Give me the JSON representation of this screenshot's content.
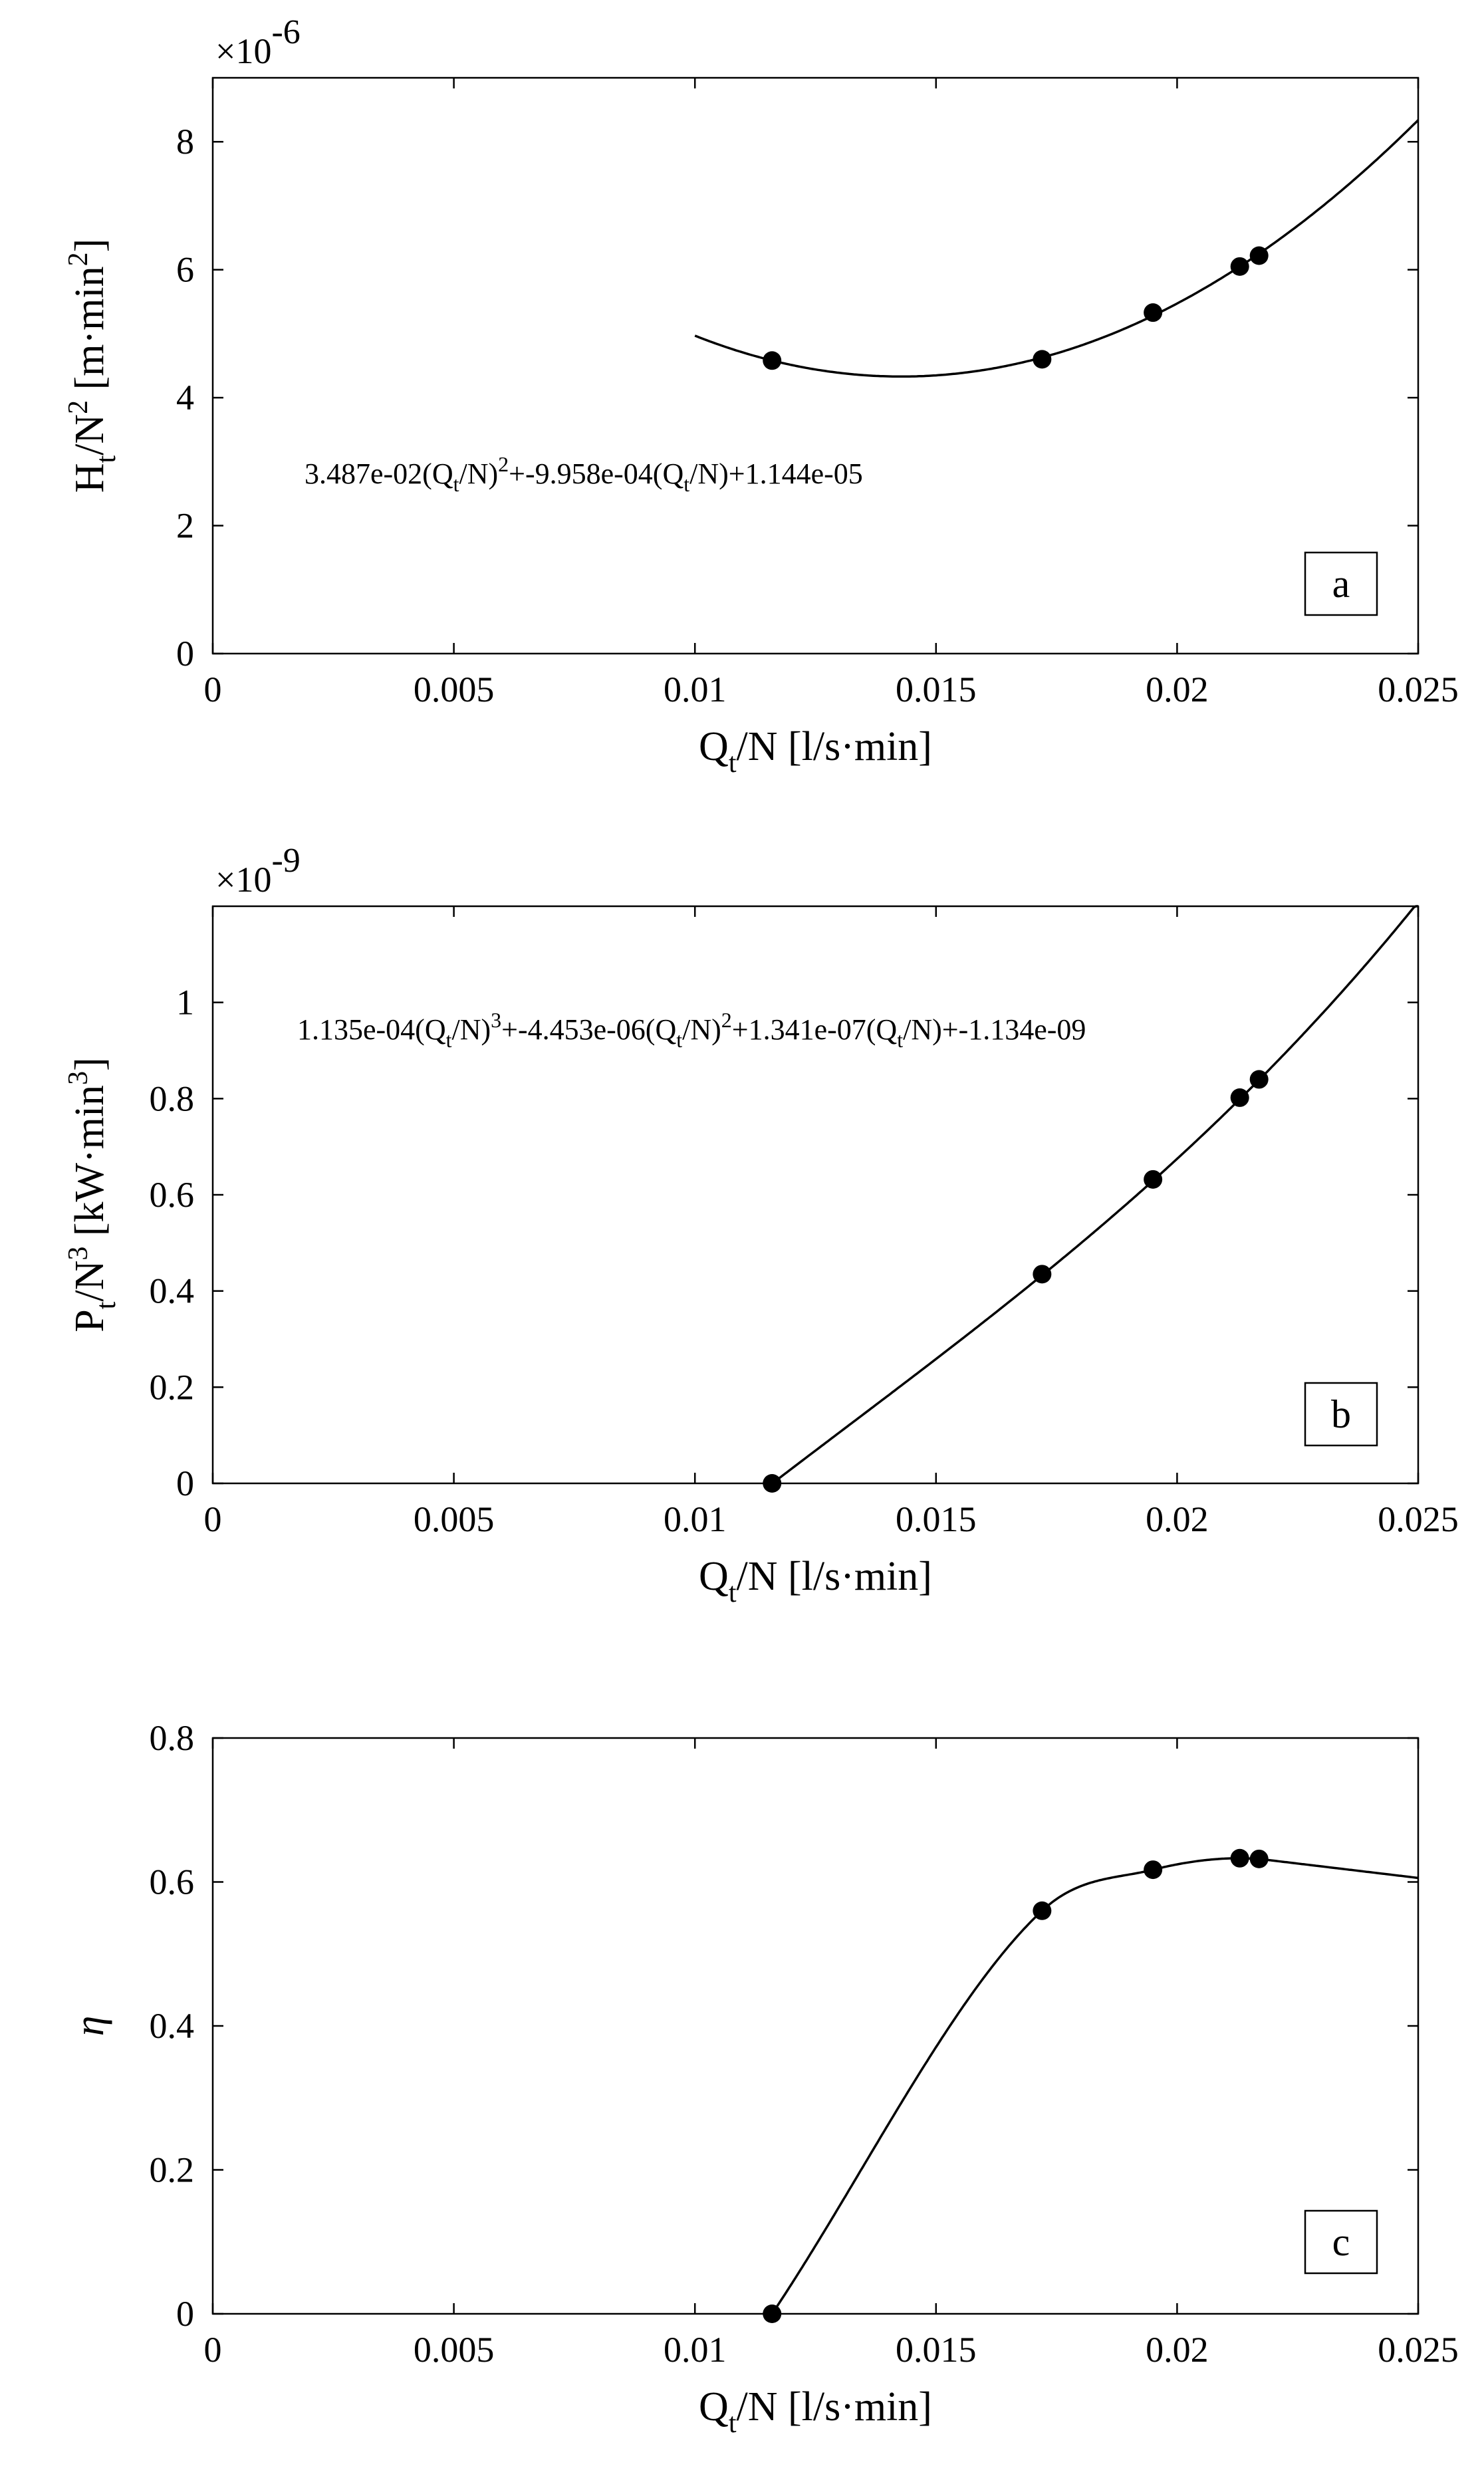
{
  "chart_data": [
    {
      "type": "line",
      "panel_label": "a",
      "multiplier_base": "×10",
      "multiplier_exponent": "-6",
      "ylabel": {
        "base": "H",
        "sub": "t",
        "mid": "/N",
        "sup": "2",
        "rest": " [m·min",
        "rest_sup": "2",
        "end": "]"
      },
      "xlabel": {
        "base": "Q",
        "sub": "t",
        "rest": "/N [l/s·min]"
      },
      "xlim": [
        0,
        0.025
      ],
      "ylim": [
        0,
        9
      ],
      "xticks": [
        0,
        0.005,
        0.01,
        0.015,
        0.02,
        0.025
      ],
      "xtick_labels": [
        "0",
        "0.005",
        "0.01",
        "0.015",
        "0.02",
        "0.025"
      ],
      "yticks": [
        0,
        2,
        4,
        6,
        8
      ],
      "ytick_labels": [
        "0",
        "2",
        "4",
        "6",
        "8"
      ],
      "equation": [
        {
          "t": "3.487e-02(Q"
        },
        {
          "t": "t",
          "s": "sub"
        },
        {
          "t": "/N)"
        },
        {
          "t": "2",
          "s": "sup"
        },
        {
          "t": "+-9.958e-04(Q"
        },
        {
          "t": "t",
          "s": "sub"
        },
        {
          "t": "/N)+1.144e-05"
        }
      ],
      "fit": {
        "kind": "poly",
        "coefs": [
          0.03487,
          -0.0009958,
          1.144e-05
        ],
        "scale": 1000000.0,
        "x_range": [
          0.01,
          0.025
        ]
      },
      "points": {
        "x": [
          0.0116,
          0.0172,
          0.0195,
          0.0213,
          0.0217
        ],
        "y": [
          4.58,
          4.6,
          5.33,
          6.05,
          6.22
        ]
      }
    },
    {
      "type": "line",
      "panel_label": "b",
      "multiplier_base": "×10",
      "multiplier_exponent": "-9",
      "ylabel": {
        "base": "P",
        "sub": "t",
        "mid": "/N",
        "sup": "3",
        "rest": " [kW·min",
        "rest_sup": "3",
        "end": "]"
      },
      "xlabel": {
        "base": "Q",
        "sub": "t",
        "rest": "/N [l/s·min]"
      },
      "xlim": [
        0,
        0.025
      ],
      "ylim": [
        0,
        1.2
      ],
      "xticks": [
        0,
        0.005,
        0.01,
        0.015,
        0.02,
        0.025
      ],
      "xtick_labels": [
        "0",
        "0.005",
        "0.01",
        "0.015",
        "0.02",
        "0.025"
      ],
      "yticks": [
        0,
        0.2,
        0.4,
        0.6,
        0.8,
        1
      ],
      "ytick_labels": [
        "0",
        "0.2",
        "0.4",
        "0.6",
        "0.8",
        "1"
      ],
      "equation": [
        {
          "t": "1.135e-04(Q"
        },
        {
          "t": "t",
          "s": "sub"
        },
        {
          "t": "/N)"
        },
        {
          "t": "3",
          "s": "sup"
        },
        {
          "t": "+-4.453e-06(Q"
        },
        {
          "t": "t",
          "s": "sub"
        },
        {
          "t": "/N)"
        },
        {
          "t": "2",
          "s": "sup"
        },
        {
          "t": "+1.341e-07(Q"
        },
        {
          "t": "t",
          "s": "sub"
        },
        {
          "t": "/N)+-1.134e-09"
        }
      ],
      "fit": {
        "kind": "poly",
        "coefs": [
          0.0001135,
          -4.453e-06,
          1.341e-07,
          -1.134e-09
        ],
        "scale": 1000000000.0,
        "x_range": [
          0.0116,
          0.025
        ]
      },
      "points": {
        "x": [
          0.0116,
          0.0172,
          0.0195,
          0.0213,
          0.0217
        ],
        "y": [
          0.0,
          0.435,
          0.632,
          0.802,
          0.84
        ]
      }
    },
    {
      "type": "line",
      "panel_label": "c",
      "ylabel_text": "η",
      "xlabel": {
        "base": "Q",
        "sub": "t",
        "rest": "/N [l/s·min]"
      },
      "xlim": [
        0,
        0.025
      ],
      "ylim": [
        0,
        0.8
      ],
      "xticks": [
        0,
        0.005,
        0.01,
        0.015,
        0.02,
        0.025
      ],
      "xtick_labels": [
        "0",
        "0.005",
        "0.01",
        "0.015",
        "0.02",
        "0.025"
      ],
      "yticks": [
        0,
        0.2,
        0.4,
        0.6,
        0.8
      ],
      "ytick_labels": [
        "0",
        "0.2",
        "0.4",
        "0.6",
        "0.8"
      ],
      "fit": {
        "kind": "smooth",
        "x_range": [
          0.0116,
          0.025
        ]
      },
      "points": {
        "x": [
          0.0116,
          0.0172,
          0.0195,
          0.0213,
          0.0217
        ],
        "y": [
          0.0,
          0.56,
          0.617,
          0.633,
          0.632
        ]
      }
    }
  ]
}
